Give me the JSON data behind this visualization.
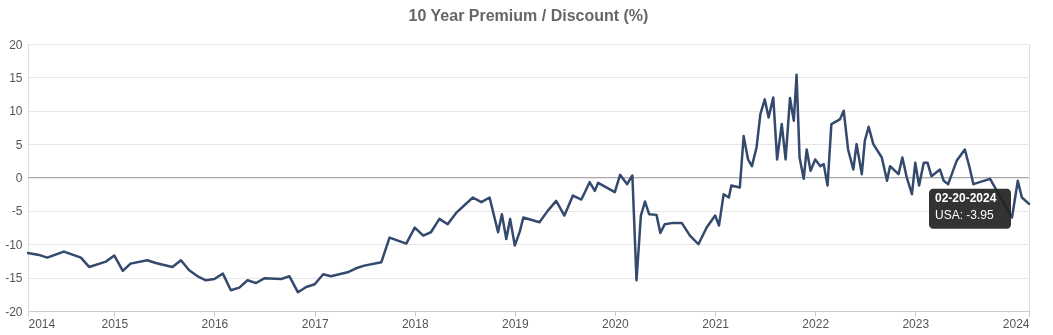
{
  "chart_data": {
    "type": "line",
    "title": "10 Year Premium / Discount (%)",
    "xlim": [
      "2014-02-20",
      "2024-02-20"
    ],
    "xticks": [
      {
        "value": "2014-02-20",
        "label": "2014"
      },
      {
        "value": "2015-01-01",
        "label": "2015"
      },
      {
        "value": "2016-01-01",
        "label": "2016"
      },
      {
        "value": "2017-01-01",
        "label": "2017"
      },
      {
        "value": "2018-01-01",
        "label": "2018"
      },
      {
        "value": "2019-01-01",
        "label": "2019"
      },
      {
        "value": "2020-01-01",
        "label": "2020"
      },
      {
        "value": "2021-01-01",
        "label": "2021"
      },
      {
        "value": "2022-01-01",
        "label": "2022"
      },
      {
        "value": "2023-01-01",
        "label": "2023"
      },
      {
        "value": "2024-02-20",
        "label": "2024"
      }
    ],
    "ylim": [
      -20,
      20
    ],
    "yticks": [
      -20,
      -15,
      -10,
      -5,
      0,
      5,
      10,
      15,
      20
    ],
    "grid": "y",
    "marker": "none",
    "line_style": "solid",
    "ref_lines": [
      {
        "axis": "y",
        "value": 0,
        "color": "#aaaaaa"
      }
    ],
    "annotations": [
      "02-20-2024"
    ],
    "x": [
      "2014-02-20",
      "2014-04",
      "2014-05",
      "2014-07",
      "2014-09",
      "2014-10",
      "2014-12",
      "2015-01",
      "2015-02",
      "2015-03",
      "2015-05",
      "2015-06",
      "2015-08",
      "2015-09",
      "2015-10",
      "2015-11",
      "2015-12",
      "2016-01",
      "2016-02",
      "2016-03",
      "2016-04",
      "2016-05",
      "2016-06",
      "2016-07",
      "2016-09",
      "2016-10",
      "2016-11",
      "2016-12",
      "2017-01",
      "2017-02",
      "2017-03",
      "2017-05",
      "2017-06",
      "2017-07",
      "2017-09",
      "2017-10",
      "2017-12",
      "2018-01",
      "2018-02",
      "2018-03",
      "2018-04",
      "2018-05",
      "2018-06",
      "2018-08",
      "2018-09",
      "2018-10",
      "2018-11-01",
      "2018-11-15",
      "2018-12-01",
      "2018-12-15",
      "2019-01-01",
      "2019-01-20",
      "2019-02",
      "2019-04",
      "2019-05",
      "2019-06",
      "2019-07",
      "2019-08",
      "2019-09",
      "2019-10",
      "2019-10-20",
      "2019-11",
      "2020-01",
      "2020-01-20",
      "2020-02-15",
      "2020-03-05",
      "2020-03-20",
      "2020-04-05",
      "2020-04-20",
      "2020-05-05",
      "2020-06",
      "2020-06-15",
      "2020-07",
      "2020-08",
      "2020-09",
      "2020-10",
      "2020-11",
      "2020-12",
      "2021-01",
      "2021-01-15",
      "2021-02",
      "2021-02-20",
      "2021-03",
      "2021-04",
      "2021-04-15",
      "2021-05",
      "2021-05-15",
      "2021-06",
      "2021-06-15",
      "2021-07",
      "2021-07-15",
      "2021-08",
      "2021-08-15",
      "2021-09",
      "2021-09-15",
      "2021-10",
      "2021-10-15",
      "2021-10-25",
      "2021-11-05",
      "2021-11-20",
      "2021-12",
      "2021-12-15",
      "2022-01",
      "2022-01-20",
      "2022-02",
      "2022-02-15",
      "2022-03",
      "2022-04",
      "2022-04-15",
      "2022-05",
      "2022-05-20",
      "2022-06",
      "2022-06-20",
      "2022-07",
      "2022-07-15",
      "2022-08",
      "2022-09",
      "2022-09-20",
      "2022-10",
      "2022-11",
      "2022-11-15",
      "2022-12",
      "2022-12-20",
      "2023-01",
      "2023-01-15",
      "2023-02",
      "2023-02-15",
      "2023-03",
      "2023-04",
      "2023-04-15",
      "2023-05",
      "2023-06",
      "2023-07",
      "2023-07-20",
      "2023-08",
      "2023-10",
      "2023-12-20",
      "2024-01-10",
      "2024-01-25",
      "2024-02-20"
    ],
    "series": [
      {
        "name": "USA:",
        "color": "#34496e",
        "values": [
          -11.3,
          -11.6,
          -12.0,
          -11.1,
          -12.0,
          -13.4,
          -12.6,
          -11.7,
          -14.0,
          -12.9,
          -12.4,
          -12.8,
          -13.4,
          -12.4,
          -13.9,
          -14.8,
          -15.4,
          -15.2,
          -14.4,
          -16.9,
          -16.5,
          -15.4,
          -15.8,
          -15.1,
          -15.2,
          -14.8,
          -17.2,
          -16.4,
          -16.0,
          -14.5,
          -14.8,
          -14.2,
          -13.6,
          -13.2,
          -12.7,
          -9.0,
          -9.9,
          -7.5,
          -8.7,
          -8.2,
          -6.2,
          -7.0,
          -5.3,
          -3.0,
          -3.7,
          -3.0,
          -8.2,
          -5.5,
          -9.2,
          -6.2,
          -10.2,
          -8.0,
          -6.0,
          -6.7,
          -5.0,
          -3.5,
          -5.7,
          -2.7,
          -3.3,
          -0.7,
          -2.0,
          -0.8,
          -2.2,
          0.4,
          -1.0,
          0.3,
          -15.4,
          -5.7,
          -3.6,
          -5.5,
          -5.6,
          -8.3,
          -7.0,
          -6.8,
          -6.8,
          -8.7,
          -10.0,
          -7.5,
          -5.7,
          -7.2,
          -2.5,
          -3.0,
          -1.2,
          -1.5,
          6.2,
          2.7,
          1.7,
          4.5,
          9.5,
          11.7,
          9.0,
          12.0,
          2.7,
          8.0,
          2.7,
          11.9,
          8.5,
          15.4,
          3.0,
          -0.2,
          4.2,
          1.0,
          2.7,
          1.7,
          2.0,
          -1.2,
          8.0,
          8.7,
          10.0,
          4.2,
          1.2,
          5.0,
          0.5,
          5.5,
          7.6,
          5.0,
          3.0,
          -0.5,
          1.7,
          0.5,
          3.0,
          0.0,
          -2.5,
          2.2,
          -1.2,
          2.2,
          2.2,
          0.2,
          1.2,
          -0.5,
          -1.0,
          2.5,
          4.2,
          1.2,
          -1.0,
          -0.2,
          -6.0,
          -0.5,
          -3.0,
          -3.95
        ],
        "value_labels": [
          null,
          null,
          null,
          null,
          null,
          null,
          null,
          null,
          null,
          null,
          null,
          null,
          null,
          null,
          null,
          null,
          null,
          null,
          null,
          null,
          null,
          null,
          null,
          null,
          null,
          null,
          null,
          null,
          null,
          null,
          null,
          null,
          null,
          null,
          null,
          null,
          null,
          null,
          null,
          null,
          null,
          null,
          null,
          null,
          null,
          null,
          null,
          null,
          null,
          null,
          null,
          null,
          null,
          null,
          null,
          null,
          null,
          null,
          null,
          null,
          null,
          null,
          null,
          null,
          null,
          null,
          null,
          null,
          null,
          null,
          null,
          null,
          null,
          null,
          null,
          null,
          null,
          null,
          null,
          null,
          null,
          null,
          null,
          null,
          null,
          null,
          null,
          null,
          null,
          null,
          null,
          null,
          null,
          null,
          null,
          null,
          null,
          null,
          null,
          null,
          null,
          null,
          null,
          null,
          null,
          null,
          null,
          null,
          null,
          null,
          null,
          null,
          null,
          null,
          null,
          null,
          null,
          null,
          null,
          null,
          null,
          null,
          null,
          null,
          null,
          null,
          null,
          null,
          null,
          null,
          null,
          null,
          null,
          null,
          null,
          null,
          null,
          null,
          null,
          "-3.95"
        ]
      }
    ]
  }
}
